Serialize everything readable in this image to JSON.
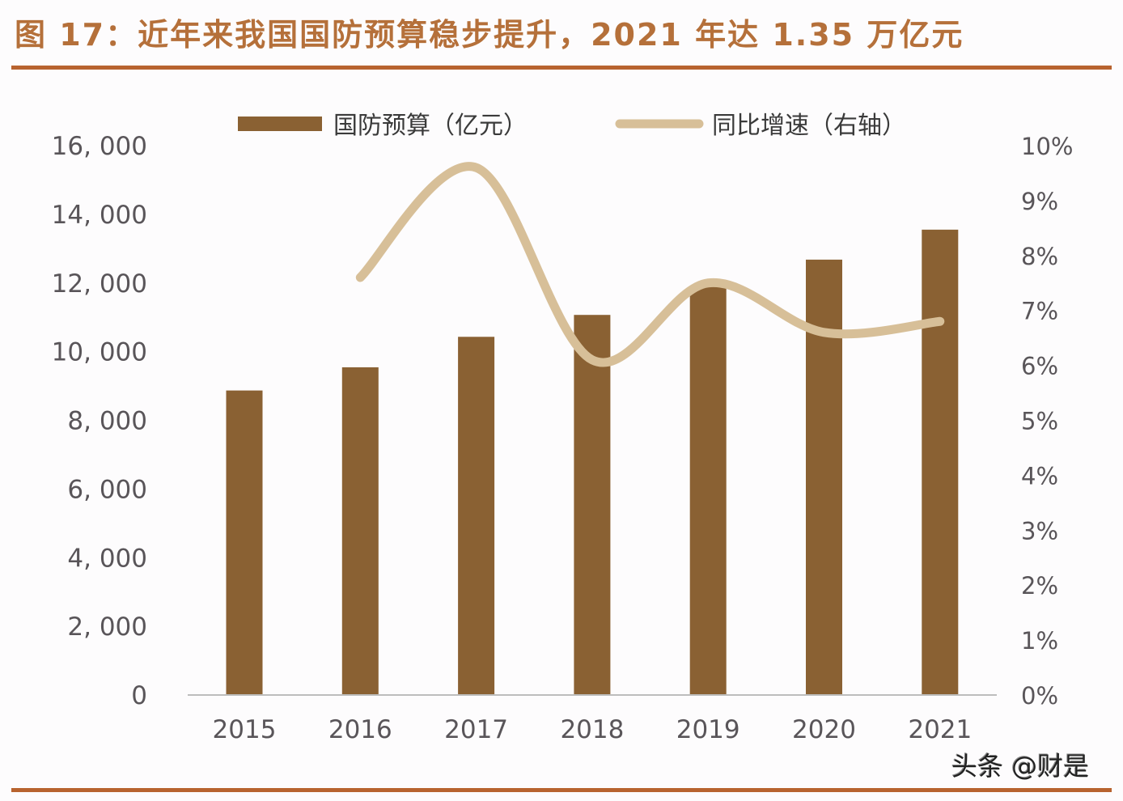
{
  "header": {
    "title": "图 17：近年来我国国防预算稳步提升，2021 年达 1.35 万亿元"
  },
  "legend": {
    "bar_label": "国防预算（亿元）",
    "line_label": "同比增速（右轴）"
  },
  "watermark": "头条 @财是",
  "colors": {
    "bar": "#8a6133",
    "line": "#d7bf98",
    "title": "#b5703a",
    "rule": "#b8632f",
    "axis_text": "#595559"
  },
  "chart_data": {
    "type": "bar+line",
    "title": "图 17：近年来我国国防预算稳步提升，2021 年达 1.35 万亿元",
    "categories": [
      "2015",
      "2016",
      "2017",
      "2018",
      "2019",
      "2020",
      "2021"
    ],
    "series": [
      {
        "name": "国防预算（亿元）",
        "type": "bar",
        "axis": "left",
        "values": [
          8869,
          9544,
          10432,
          11070,
          11899,
          12680,
          13553
        ]
      },
      {
        "name": "同比增速（右轴）",
        "type": "line",
        "axis": "right",
        "smooth": true,
        "values": [
          null,
          7.6,
          9.6,
          6.1,
          7.5,
          6.6,
          6.8
        ]
      }
    ],
    "left_axis": {
      "ylim": [
        0,
        16000
      ],
      "ticks": [
        "0",
        "2, 000",
        "4, 000",
        "6, 000",
        "8, 000",
        "10, 000",
        "12, 000",
        "14, 000",
        "16, 000"
      ]
    },
    "right_axis": {
      "ylim": [
        0,
        10
      ],
      "ticks": [
        "0%",
        "1%",
        "2%",
        "3%",
        "4%",
        "5%",
        "6%",
        "7%",
        "8%",
        "9%",
        "10%"
      ]
    },
    "xlabel": "",
    "ylabel": "",
    "grid": false,
    "legend_position": "top"
  }
}
